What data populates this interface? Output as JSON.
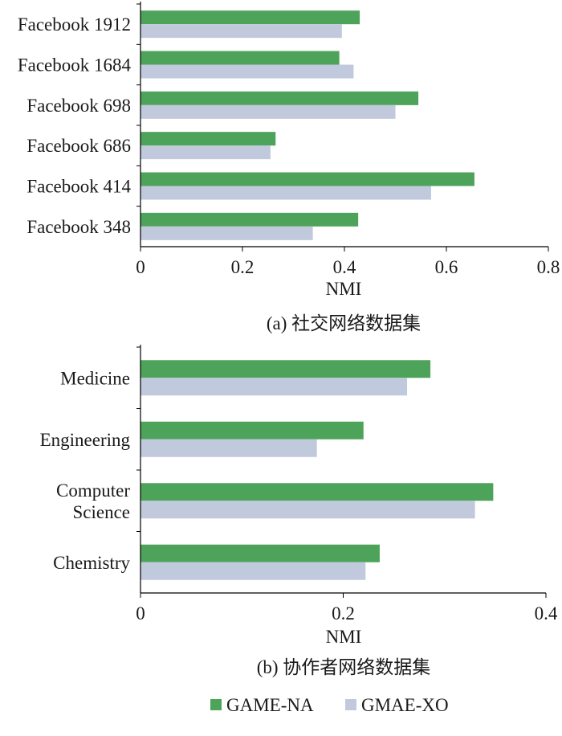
{
  "chart_data": [
    {
      "type": "bar",
      "orientation": "horizontal",
      "caption": "(a) 社交网络数据集",
      "xlabel": "NMI",
      "xlim": [
        0,
        0.8
      ],
      "xticks": [
        "0",
        "0.2",
        "0.4",
        "0.6",
        "0.8"
      ],
      "xtick_values": [
        0,
        0.2,
        0.4,
        0.6,
        0.8
      ],
      "categories": [
        {
          "lines": [
            "Facebook 1912"
          ]
        },
        {
          "lines": [
            "Facebook 1684"
          ]
        },
        {
          "lines": [
            "Facebook 698"
          ]
        },
        {
          "lines": [
            "Facebook 686"
          ]
        },
        {
          "lines": [
            "Facebook 414"
          ]
        },
        {
          "lines": [
            "Facebook 348"
          ]
        }
      ],
      "series": [
        {
          "name": "GAME-NA",
          "values": [
            0.43,
            0.39,
            0.545,
            0.265,
            0.655,
            0.427
          ]
        },
        {
          "name": "GMAE-XO",
          "values": [
            0.395,
            0.418,
            0.5,
            0.255,
            0.57,
            0.338
          ]
        }
      ]
    },
    {
      "type": "bar",
      "orientation": "horizontal",
      "caption": "(b) 协作者网络数据集",
      "xlabel": "NMI",
      "xlim": [
        0,
        0.4
      ],
      "xticks": [
        "0",
        "0.2",
        "0.4"
      ],
      "xtick_values": [
        0,
        0.2,
        0.4
      ],
      "categories": [
        {
          "lines": [
            "Medicine"
          ]
        },
        {
          "lines": [
            "Engineering"
          ]
        },
        {
          "lines": [
            "Computer",
            "Science"
          ]
        },
        {
          "lines": [
            "Chemistry"
          ]
        }
      ],
      "series": [
        {
          "name": "GAME-NA",
          "values": [
            0.286,
            0.22,
            0.348,
            0.236
          ]
        },
        {
          "name": "GMAE-XO",
          "values": [
            0.263,
            0.174,
            0.33,
            0.222
          ]
        }
      ]
    }
  ],
  "legend": {
    "items": [
      {
        "label": "GAME-NA",
        "color": "#4ea35a"
      },
      {
        "label": "GMAE-XO",
        "color": "#c1c9dd"
      }
    ]
  },
  "colors": {
    "series1": "#4ea35a",
    "series2": "#c1c9dd",
    "axis": "#000000"
  }
}
